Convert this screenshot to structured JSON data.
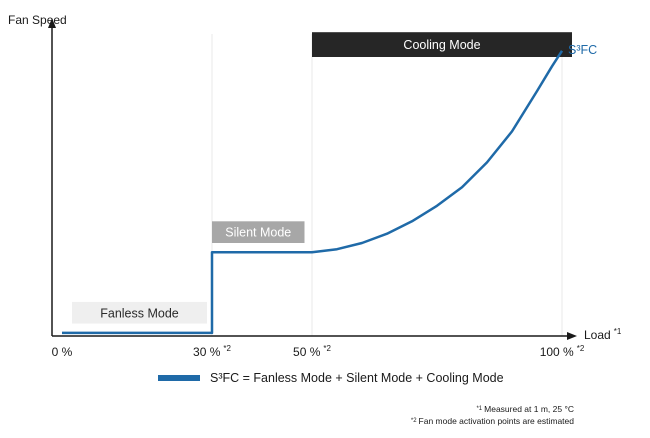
{
  "chart_data": {
    "type": "line",
    "ylabel": "Fan Speed",
    "xlabel": "Load",
    "xlabel_note": "*1",
    "xlim": [
      -2,
      102
    ],
    "ylim": [
      0,
      100
    ],
    "x_ticks": [
      {
        "value": 0,
        "label": "0 %",
        "note": ""
      },
      {
        "value": 30,
        "label": "30 %",
        "note": "*2"
      },
      {
        "value": 50,
        "label": "50 %",
        "note": "*2"
      },
      {
        "value": 100,
        "label": "100 %",
        "note": "*2"
      }
    ],
    "series": [
      {
        "name": "S³FC",
        "color": "#1f6aa8",
        "x": [
          0,
          30,
          30,
          40,
          50,
          55,
          60,
          65,
          70,
          75,
          80,
          85,
          90,
          95,
          98,
          100
        ],
        "y": [
          1,
          1,
          27,
          27,
          27,
          28,
          30,
          33,
          37,
          42,
          48,
          56,
          66,
          79,
          87,
          92
        ]
      }
    ],
    "mode_bands": [
      {
        "label": "Fanless Mode",
        "x_start": 2,
        "x_end": 29,
        "y_low": 4,
        "y_high": 11,
        "fill": "#efefef",
        "text_color": "#2a2a2a"
      },
      {
        "label": "Silent Mode",
        "x_start": 30,
        "x_end": 48.5,
        "y_low": 30,
        "y_high": 37,
        "fill": "#a7a7a7",
        "text_color": "#ffffff"
      },
      {
        "label": "Cooling Mode",
        "x_start": 50,
        "x_end": 102,
        "y_low": 90,
        "y_high": 98,
        "fill": "#262626",
        "text_color": "#ffffff"
      }
    ],
    "gridlines_x": [
      30,
      50,
      100
    ],
    "legend": {
      "text": "S³FC = Fanless Mode + Silent Mode + Cooling Mode",
      "placement": "bottom-center"
    }
  },
  "footnotes": [
    {
      "mark": "*1",
      "text": "Measured at 1 m, 25 °C"
    },
    {
      "mark": "*2",
      "text": "Fan mode activation points are estimated"
    }
  ]
}
